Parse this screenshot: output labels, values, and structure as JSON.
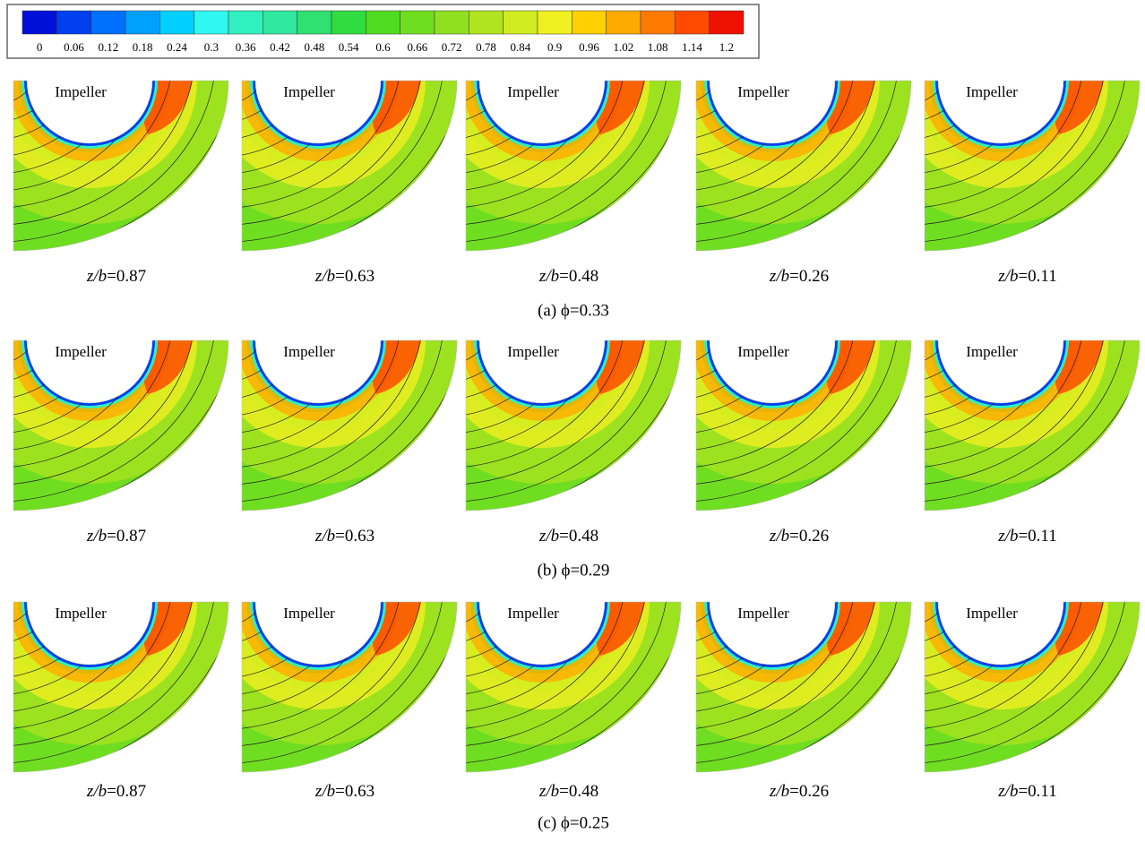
{
  "colorbar": {
    "ticks": [
      0,
      0.06,
      0.12,
      0.18,
      0.24,
      0.3,
      0.36,
      0.42,
      0.48,
      0.54,
      0.6,
      0.66,
      0.72,
      0.78,
      0.84,
      0.9,
      0.96,
      1.02,
      1.08,
      1.14,
      1.2
    ],
    "colors": [
      "#0010d8",
      "#0040f0",
      "#0070ff",
      "#00a0ff",
      "#00d0ff",
      "#30f8f0",
      "#30f0c0",
      "#30e8a0",
      "#30e070",
      "#30dc40",
      "#50dc20",
      "#70de20",
      "#90e020",
      "#b0e420",
      "#d0ec20",
      "#f0f020",
      "#ffd000",
      "#ffaa00",
      "#ff7a00",
      "#ff4a00",
      "#ee1000"
    ]
  },
  "rows": [
    {
      "caption": "(a)  ϕ=0.33",
      "panels": [
        {
          "title": "Impeller",
          "label_var": "z/b",
          "label_rest": "=0.87"
        },
        {
          "title": "Impeller",
          "label_var": "z/b",
          "label_rest": "=0.63"
        },
        {
          "title": "Impeller",
          "label_var": "z/b",
          "label_rest": "=0.48"
        },
        {
          "title": "Impeller",
          "label_var": "z/b",
          "label_rest": "=0.26"
        },
        {
          "title": "Impeller",
          "label_var": "z/b",
          "label_rest": "=0.11"
        }
      ]
    },
    {
      "caption": "(b)  ϕ=0.29",
      "panels": [
        {
          "title": "Impeller",
          "label_var": "z/b",
          "label_rest": "=0.87"
        },
        {
          "title": "Impeller",
          "label_var": "z/b",
          "label_rest": "=0.63"
        },
        {
          "title": "Impeller",
          "label_var": "z/b",
          "label_rest": "=0.48"
        },
        {
          "title": "Impeller",
          "label_var": "z/b",
          "label_rest": "=0.26"
        },
        {
          "title": "Impeller",
          "label_var": "z/b",
          "label_rest": "=0.11"
        }
      ]
    },
    {
      "caption": "(c)  ϕ=0.25",
      "panels": [
        {
          "title": "Impeller",
          "label_var": "z/b",
          "label_rest": "=0.87"
        },
        {
          "title": "Impeller",
          "label_var": "z/b",
          "label_rest": "=0.63"
        },
        {
          "title": "Impeller",
          "label_var": "z/b",
          "label_rest": "=0.48"
        },
        {
          "title": "Impeller",
          "label_var": "z/b",
          "label_rest": "=0.26"
        },
        {
          "title": "Impeller",
          "label_var": "z/b",
          "label_rest": "=0.11"
        }
      ]
    }
  ]
}
